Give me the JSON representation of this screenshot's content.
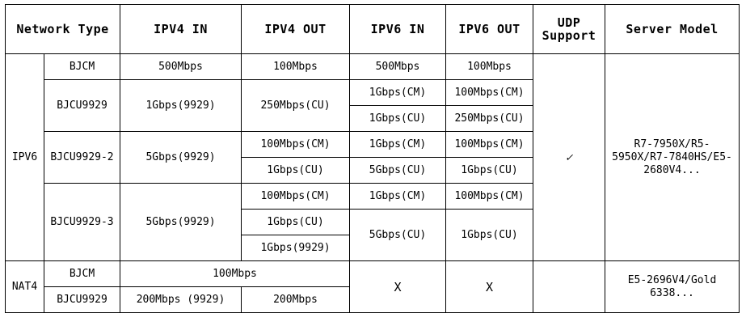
{
  "headers": {
    "network_type": "Network Type",
    "ipv4_in": "IPV4 IN",
    "ipv4_out": "IPV4 OUT",
    "ipv6_in": "IPV6 IN",
    "ipv6_out": "IPV6 OUT",
    "udp_line1": "UDP",
    "udp_line2": "Support",
    "server_model": "Server Model"
  },
  "ipv6_group": {
    "label": "IPV6",
    "udp_support": "✓",
    "server_model": "R7-7950X/R5-5950X/R7-7840HS/E5-2680V4...",
    "bjcm": {
      "name": "BJCM",
      "ipv4_in": "500Mbps",
      "ipv4_out": "100Mbps",
      "ipv6_in": "500Mbps",
      "ipv6_out": "100Mbps"
    },
    "bjcu9929": {
      "name": "BJCU9929",
      "ipv4_in": "1Gbps(9929)",
      "ipv4_out": "250Mbps(CU)",
      "ipv6_in_1": "1Gbps(CM)",
      "ipv6_out_1": "100Mbps(CM)",
      "ipv6_in_2": "1Gbps(CU)",
      "ipv6_out_2": "250Mbps(CU)"
    },
    "bjcu9929_2": {
      "name": "BJCU9929-2",
      "ipv4_in": "5Gbps(9929)",
      "ipv4_out_1": "100Mbps(CM)",
      "ipv6_in_1": "1Gbps(CM)",
      "ipv6_out_1": "100Mbps(CM)",
      "ipv4_out_2": "1Gbps(CU)",
      "ipv6_in_2": "5Gbps(CU)",
      "ipv6_out_2": "1Gbps(CU)"
    },
    "bjcu9929_3": {
      "name": "BJCU9929-3",
      "ipv4_in": "5Gbps(9929)",
      "ipv4_out_1": "100Mbps(CM)",
      "ipv6_in_1": "1Gbps(CM)",
      "ipv6_out_1": "100Mbps(CM)",
      "ipv4_out_2": "1Gbps(CU)",
      "ipv6_in_2": "5Gbps(CU)",
      "ipv6_out_2": "1Gbps(CU)",
      "ipv4_out_3": "1Gbps(9929)"
    }
  },
  "nat4_group": {
    "label": "NAT4",
    "ipv6_in": "X",
    "ipv6_out": "X",
    "server_model": "E5-2696V4/Gold 6338...",
    "bjcm": {
      "name": "BJCM",
      "ipv4": "100Mbps"
    },
    "bjcu9929": {
      "name": "BJCU9929",
      "ipv4_in": "200Mbps (9929)",
      "ipv4_out": "200Mbps"
    }
  }
}
